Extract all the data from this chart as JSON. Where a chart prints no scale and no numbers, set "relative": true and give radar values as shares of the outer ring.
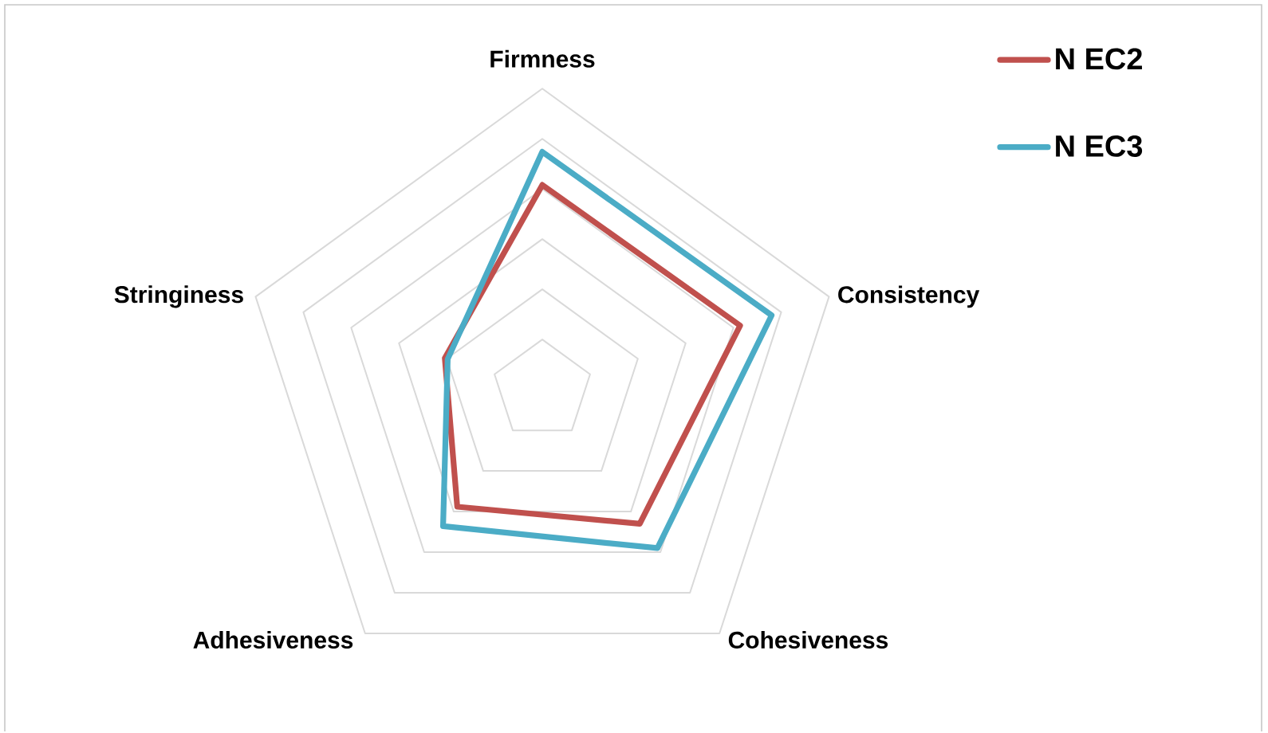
{
  "chart_data": {
    "type": "radar",
    "categories": [
      "Firmness",
      "Consistency",
      "Cohesiveness",
      "Adhesiveness",
      "Stringiness"
    ],
    "series": [
      {
        "name": "N EC2",
        "color": "#c0504d",
        "values": [
          0.68,
          0.69,
          0.55,
          0.48,
          0.34
        ]
      },
      {
        "name": "N EC3",
        "color": "#4bacc6",
        "values": [
          0.79,
          0.8,
          0.65,
          0.56,
          0.33
        ]
      }
    ],
    "relative": true,
    "grid": true,
    "legend": "top right"
  }
}
